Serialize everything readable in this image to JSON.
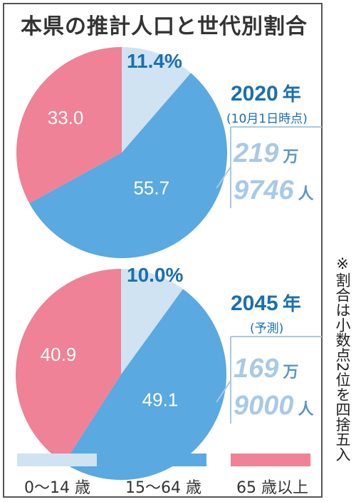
{
  "title": "本県の推計人口と世代別割合",
  "colors": {
    "youth": "#cfe3f2",
    "working": "#5aa9e0",
    "elderly": "#ef8296",
    "accent": "#1a6fb0",
    "pop": "#a9c9e6"
  },
  "chart_data": [
    {
      "type": "pie",
      "year": "2020",
      "year_unit": "年",
      "note": "(10月1日時点)",
      "population": {
        "man": "219",
        "man_unit": "万",
        "rest": "9746",
        "rest_unit": "人"
      },
      "categories": [
        "0〜14 歳",
        "15〜64 歳",
        "65 歳以上"
      ],
      "values": [
        11.4,
        55.7,
        33.0
      ],
      "labels": [
        "11.4%",
        "55.7",
        "33.0"
      ]
    },
    {
      "type": "pie",
      "year": "2045",
      "year_unit": "年",
      "note": "(予測)",
      "population": {
        "man": "169",
        "man_unit": "万",
        "rest": "9000",
        "rest_unit": "人"
      },
      "categories": [
        "0〜14 歳",
        "15〜64 歳",
        "65 歳以上"
      ],
      "values": [
        10.0,
        49.1,
        40.9
      ],
      "labels": [
        "10.0%",
        "49.1",
        "40.9"
      ]
    }
  ],
  "legend": [
    {
      "label": "0〜14 歳",
      "color": "#cfe3f2"
    },
    {
      "label": "15〜64 歳",
      "color": "#5aa9e0"
    },
    {
      "label": "65 歳以上",
      "color": "#ef8296"
    }
  ],
  "side_note": "※割合は小数点2位を四捨五入"
}
